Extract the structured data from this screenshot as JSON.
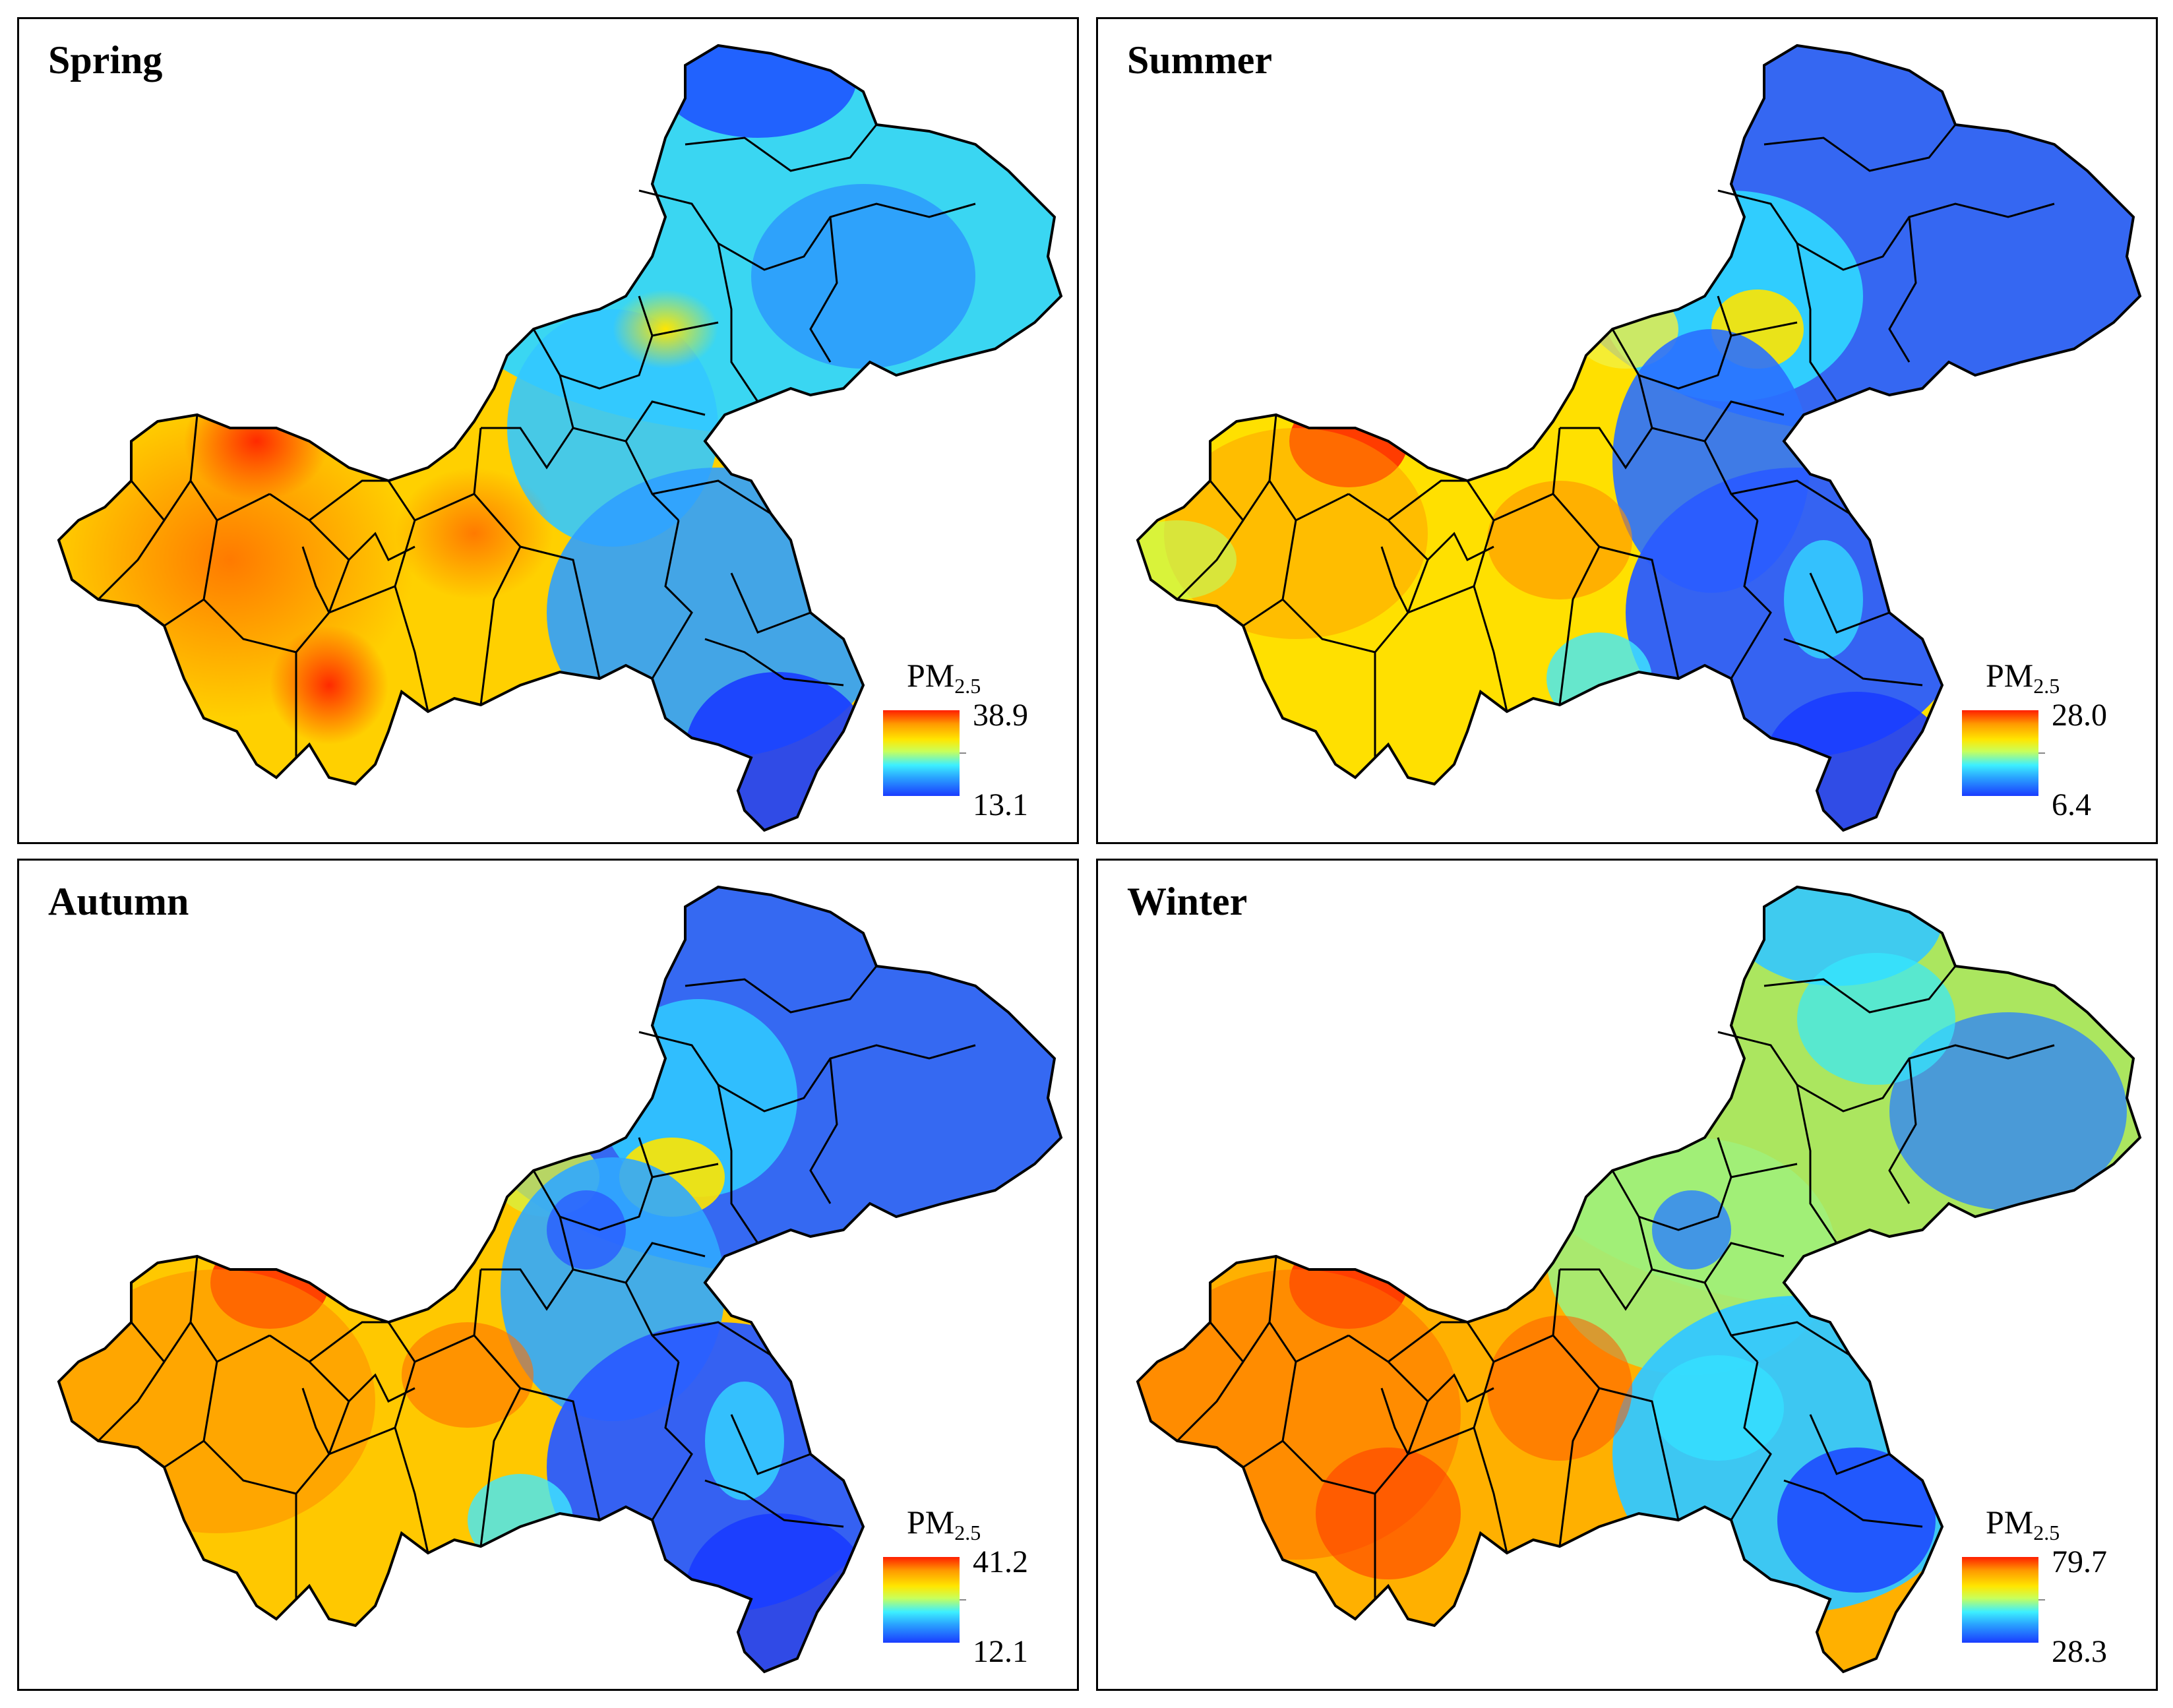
{
  "panels": [
    {
      "title": "Spring",
      "legend_label": "PM",
      "legend_sub": "2.5",
      "max": "38.9",
      "min": "13.1"
    },
    {
      "title": "Summer",
      "legend_label": "PM",
      "legend_sub": "2.5",
      "max": "28.0",
      "min": "6.4"
    },
    {
      "title": "Autumn",
      "legend_label": "PM",
      "legend_sub": "2.5",
      "max": "41.2",
      "min": "12.1"
    },
    {
      "title": "Winter",
      "legend_label": "PM",
      "legend_sub": "2.5",
      "max": "79.7",
      "min": "28.3"
    }
  ],
  "colors": {
    "low": "#1a3cff",
    "mid_low": "#3df0ff",
    "mid": "#ffe600",
    "high": "#ff1e00",
    "boundary": "#000000"
  }
}
